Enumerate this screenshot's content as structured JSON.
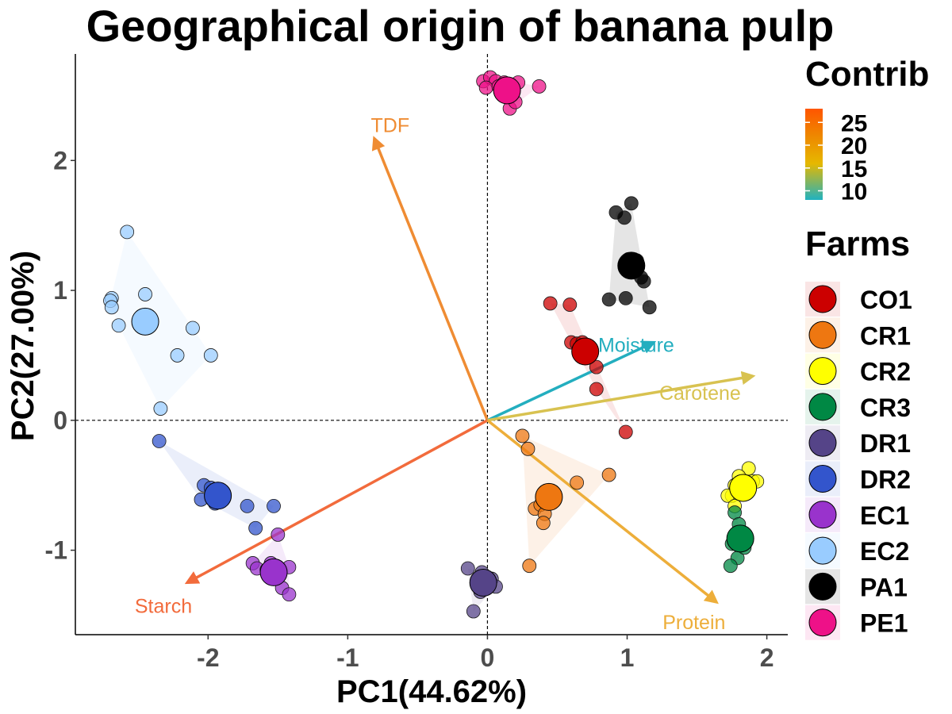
{
  "chart_data": {
    "type": "scatter",
    "subtype": "pca-biplot",
    "title": "Geographical origin of banana pulp",
    "xlabel": "PC1(44.62%)",
    "ylabel": "PC2(27.00%)",
    "xlim": [
      -2.95,
      2.15
    ],
    "ylim": [
      -1.65,
      2.82
    ],
    "xticks": [
      -2,
      -1,
      0,
      1,
      2
    ],
    "yticks": [
      -1,
      0,
      1,
      2
    ],
    "xtick_labels": [
      "-2",
      "-1",
      "0",
      "1",
      "2"
    ],
    "ytick_labels": [
      "-1",
      "0",
      "1",
      "2"
    ],
    "grid": false,
    "reference_lines": {
      "x": 0,
      "y": 0,
      "style": "dashed"
    },
    "legend_position": "right",
    "colorbar": {
      "title": "Contrib",
      "range": [
        8,
        28
      ],
      "ticks": [
        10,
        15,
        20,
        25
      ],
      "tick_labels": [
        "10",
        "15",
        "20",
        "25"
      ],
      "colors": [
        "#20b2c0",
        "#e6b800",
        "#ee8800",
        "#ff5500"
      ]
    },
    "variables": [
      {
        "name": "TDF",
        "x": -0.81,
        "y": 2.17,
        "contrib": 21,
        "color": "#ef8c33"
      },
      {
        "name": "Moisture",
        "x": 1.19,
        "y": 0.6,
        "contrib": 10,
        "color": "#23aebf"
      },
      {
        "name": "Carotene",
        "x": 1.9,
        "y": 0.34,
        "contrib": 16,
        "color": "#d8c250"
      },
      {
        "name": "Starch",
        "x": -2.15,
        "y": -1.25,
        "contrib": 26,
        "color": "#f26b3c"
      },
      {
        "name": "Protein",
        "x": 1.64,
        "y": -1.4,
        "contrib": 18,
        "color": "#edae3a"
      }
    ],
    "series": [
      {
        "name": "CO1",
        "color": "#cc0000",
        "centroid": [
          0.7,
          0.53
        ],
        "points": [
          [
            0.45,
            0.9
          ],
          [
            0.59,
            0.89
          ],
          [
            0.6,
            0.6
          ],
          [
            0.64,
            0.59
          ],
          [
            0.68,
            0.6
          ],
          [
            0.72,
            0.56
          ],
          [
            0.78,
            0.41
          ],
          [
            0.78,
            0.24
          ],
          [
            0.99,
            -0.09
          ]
        ]
      },
      {
        "name": "CR1",
        "color": "#ee7711",
        "centroid": [
          0.44,
          -0.59
        ],
        "points": [
          [
            0.25,
            -0.12
          ],
          [
            0.29,
            -0.22
          ],
          [
            0.64,
            -0.48
          ],
          [
            0.87,
            -0.42
          ],
          [
            0.34,
            -0.68
          ],
          [
            0.38,
            -0.65
          ],
          [
            0.41,
            -0.72
          ],
          [
            0.4,
            -0.79
          ],
          [
            0.3,
            -1.12
          ],
          [
            0.48,
            -0.6
          ]
        ]
      },
      {
        "name": "CR2",
        "color": "#ffff00",
        "centroid": [
          1.83,
          -0.52
        ],
        "points": [
          [
            1.87,
            -0.37
          ],
          [
            1.8,
            -0.43
          ],
          [
            1.9,
            -0.47
          ],
          [
            1.77,
            -0.5
          ],
          [
            1.93,
            -0.47
          ],
          [
            1.75,
            -0.58
          ],
          [
            1.83,
            -0.54
          ],
          [
            1.72,
            -0.58
          ],
          [
            1.77,
            -0.66
          ]
        ]
      },
      {
        "name": "CR3",
        "color": "#008844",
        "centroid": [
          1.81,
          -0.91
        ],
        "points": [
          [
            1.77,
            -0.71
          ],
          [
            1.8,
            -0.8
          ],
          [
            1.82,
            -0.86
          ],
          [
            1.75,
            -0.95
          ],
          [
            1.79,
            -1.06
          ],
          [
            1.74,
            -1.12
          ],
          [
            1.84,
            -0.98
          ]
        ]
      },
      {
        "name": "DR1",
        "color": "#554488",
        "centroid": [
          -0.03,
          -1.25
        ],
        "points": [
          [
            -0.14,
            -1.14
          ],
          [
            -0.04,
            -1.17
          ],
          [
            -0.02,
            -1.25
          ],
          [
            -0.07,
            -1.27
          ],
          [
            0.03,
            -1.22
          ],
          [
            0.06,
            -1.28
          ],
          [
            -0.1,
            -1.47
          ],
          [
            -0.05,
            -1.32
          ]
        ]
      },
      {
        "name": "DR2",
        "color": "#3355cc",
        "centroid": [
          -1.93,
          -0.58
        ],
        "points": [
          [
            -2.35,
            -0.16
          ],
          [
            -2.03,
            -0.5
          ],
          [
            -1.98,
            -0.52
          ],
          [
            -2.05,
            -0.61
          ],
          [
            -1.9,
            -0.6
          ],
          [
            -1.72,
            -0.66
          ],
          [
            -1.53,
            -0.66
          ],
          [
            -1.66,
            -0.83
          ],
          [
            -1.95,
            -0.64
          ]
        ]
      },
      {
        "name": "EC1",
        "color": "#9933cc",
        "centroid": [
          -1.53,
          -1.17
        ],
        "points": [
          [
            -1.5,
            -0.88
          ],
          [
            -1.68,
            -1.1
          ],
          [
            -1.65,
            -1.14
          ],
          [
            -1.58,
            -1.15
          ],
          [
            -1.52,
            -1.12
          ],
          [
            -1.42,
            -1.13
          ],
          [
            -1.47,
            -1.29
          ],
          [
            -1.42,
            -1.34
          ],
          [
            -1.55,
            -1.1
          ]
        ]
      },
      {
        "name": "EC2",
        "color": "#99ccff",
        "centroid": [
          -2.45,
          0.76
        ],
        "points": [
          [
            -2.58,
            1.45
          ],
          [
            -2.69,
            0.94
          ],
          [
            -2.7,
            0.92
          ],
          [
            -2.69,
            0.87
          ],
          [
            -2.64,
            0.73
          ],
          [
            -2.45,
            0.97
          ],
          [
            -2.11,
            0.71
          ],
          [
            -2.22,
            0.5
          ],
          [
            -1.98,
            0.5
          ],
          [
            -2.34,
            0.09
          ]
        ]
      },
      {
        "name": "PA1",
        "color": "#000000",
        "centroid": [
          1.03,
          1.19
        ],
        "points": [
          [
            0.92,
            1.6
          ],
          [
            0.98,
            1.56
          ],
          [
            1.03,
            1.67
          ],
          [
            1.07,
            1.23
          ],
          [
            1.1,
            1.1
          ],
          [
            1.12,
            1.07
          ],
          [
            0.87,
            0.93
          ],
          [
            0.99,
            0.94
          ],
          [
            1.16,
            0.87
          ],
          [
            1.01,
            1.24
          ]
        ]
      },
      {
        "name": "PE1",
        "color": "#ee1188",
        "centroid": [
          0.14,
          2.54
        ],
        "points": [
          [
            -0.03,
            2.61
          ],
          [
            0.02,
            2.64
          ],
          [
            0.06,
            2.61
          ],
          [
            0.12,
            2.6
          ],
          [
            0.22,
            2.6
          ],
          [
            0.37,
            2.57
          ],
          [
            -0.01,
            2.56
          ],
          [
            0.08,
            2.57
          ],
          [
            0.16,
            2.4
          ],
          [
            0.2,
            2.45
          ],
          [
            0.18,
            2.52
          ]
        ]
      }
    ]
  }
}
